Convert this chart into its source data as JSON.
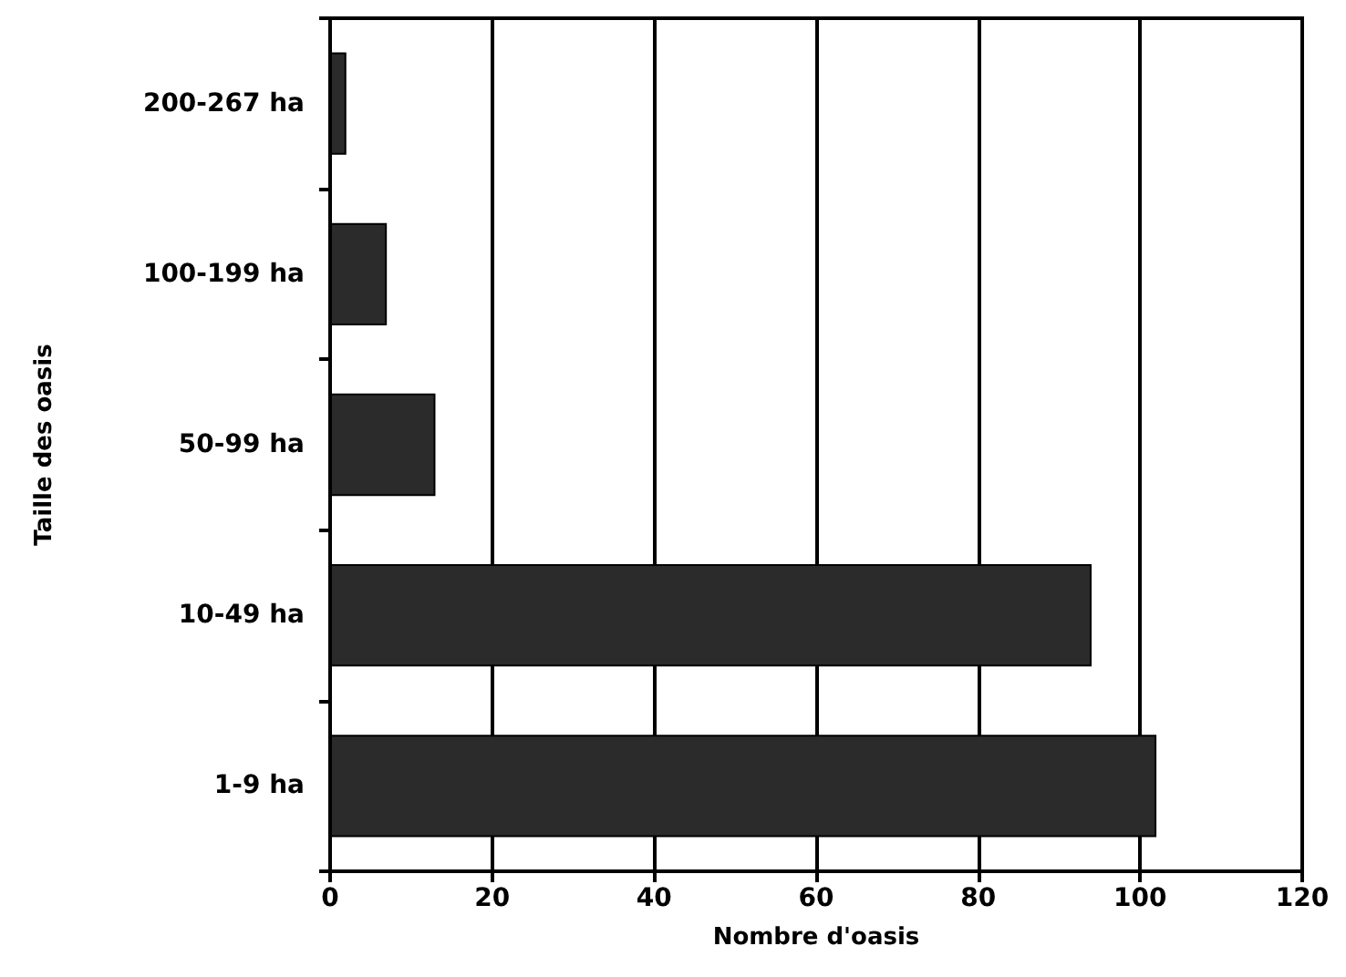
{
  "chart_data": {
    "type": "bar",
    "orientation": "horizontal",
    "xlabel": "Nombre d'oasis",
    "ylabel": "Taille des oasis",
    "categories": [
      "200-267 ha",
      "100-199 ha",
      "50-99 ha",
      "10-49 ha",
      "1-9 ha"
    ],
    "values": [
      2,
      7,
      13,
      94,
      102
    ],
    "color": "#2b2b2b",
    "xlim": [
      0,
      120
    ],
    "xticks": [
      0,
      20,
      40,
      60,
      80,
      100,
      120
    ],
    "grid": "x"
  }
}
